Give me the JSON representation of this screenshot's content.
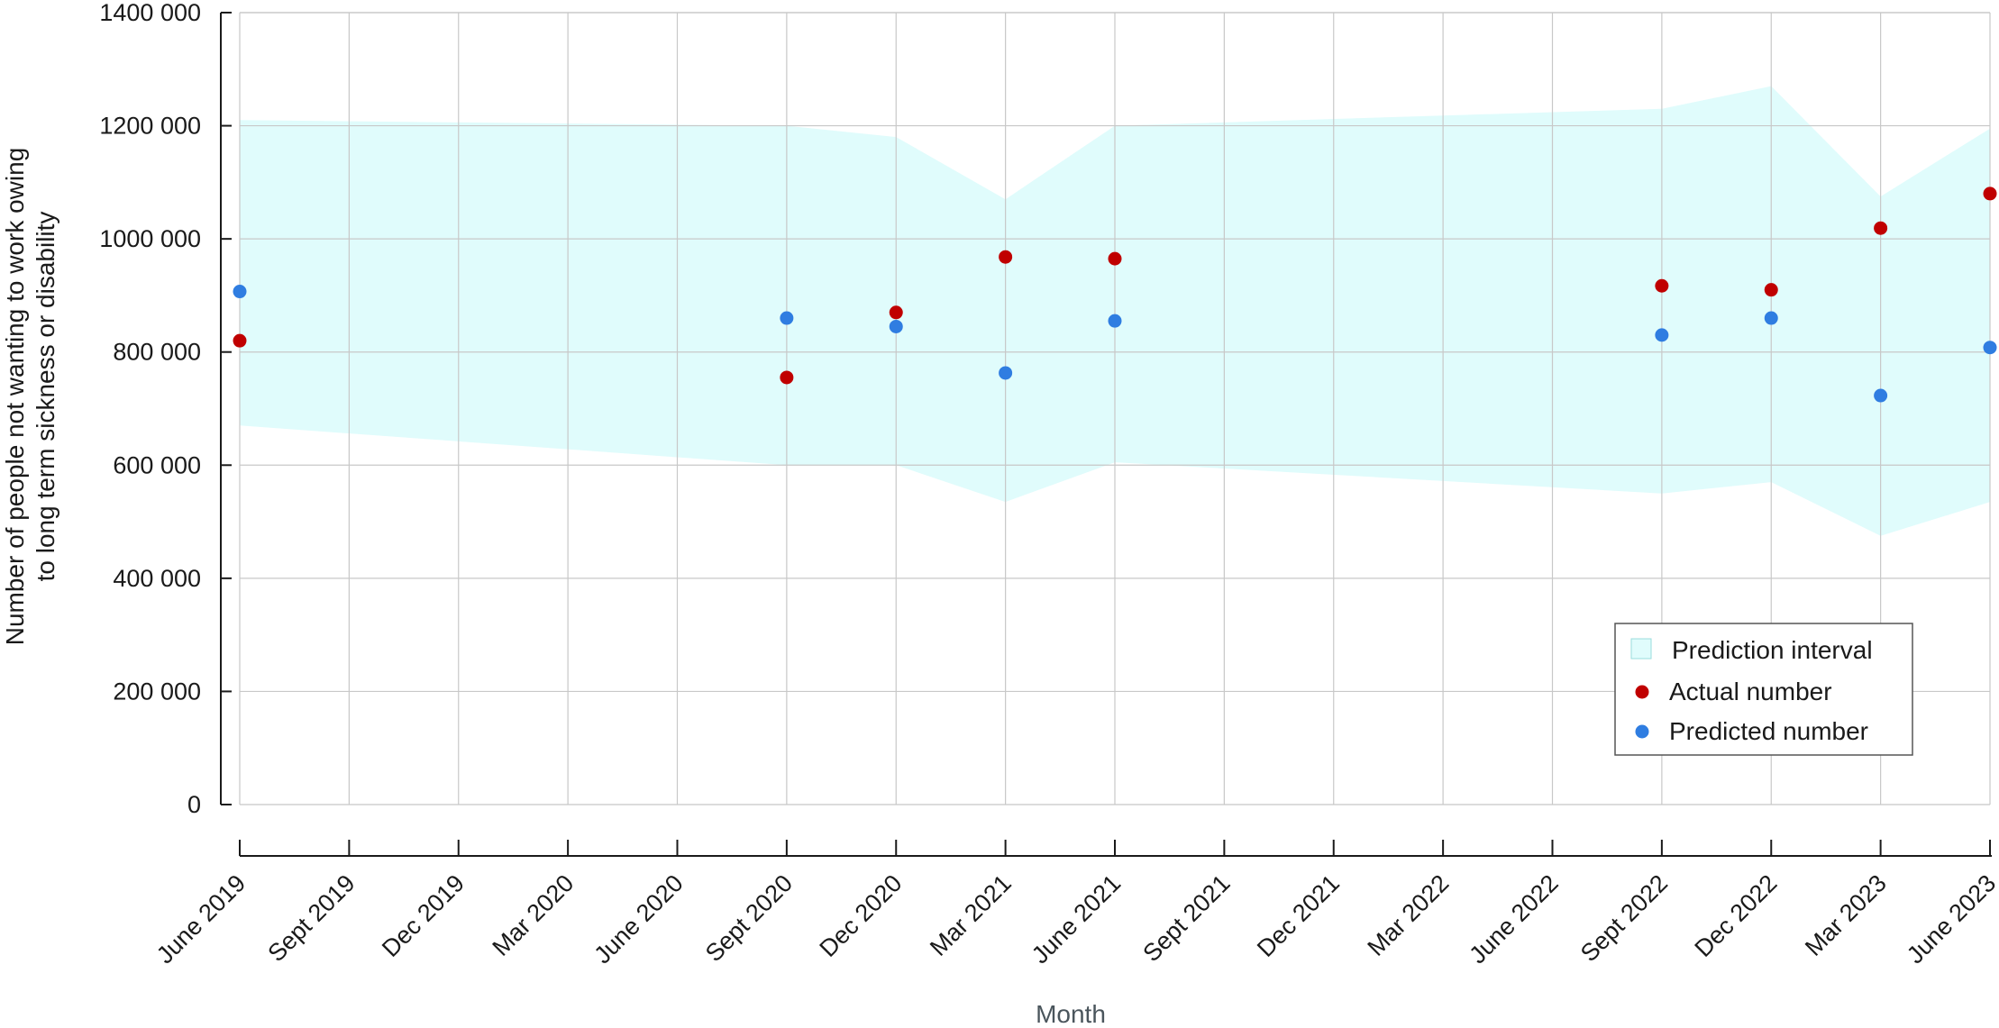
{
  "chart_data": {
    "type": "scatter",
    "xlabel": "Month",
    "ylabel": [
      "Number of people not wanting to work owing",
      "to long term sickness or disability"
    ],
    "ylim": [
      0,
      1400000
    ],
    "y_ticks": [
      0,
      200000,
      400000,
      600000,
      800000,
      1000000,
      1200000,
      1400000
    ],
    "y_tick_labels": [
      "0",
      "200 000",
      "400 000",
      "600 000",
      "800 000",
      "1000 000",
      "1200 000",
      "1400 000"
    ],
    "categories": [
      "June 2019",
      "Sept 2019",
      "Dec 2019",
      "Mar 2020",
      "June 2020",
      "Sept 2020",
      "Dec 2020",
      "Mar 2021",
      "June 2021",
      "Sept 2021",
      "Dec 2021",
      "Mar 2022",
      "June 2022",
      "Sept 2022",
      "Dec 2022",
      "Mar 2023",
      "June 2023"
    ],
    "grid": true,
    "legend_position": "bottom-right",
    "prediction_interval": {
      "name": "Prediction interval",
      "color": "#e0fcfc",
      "upper": [
        1210000,
        null,
        null,
        null,
        null,
        1200000,
        1180000,
        1070000,
        1200000,
        null,
        null,
        null,
        null,
        1230000,
        1270000,
        1075000,
        1195000
      ],
      "lower": [
        670000,
        null,
        null,
        null,
        null,
        600000,
        600000,
        535000,
        605000,
        null,
        null,
        null,
        null,
        550000,
        570000,
        475000,
        535000
      ]
    },
    "series": [
      {
        "name": "Actual number",
        "color": "#c00000",
        "values": [
          820000,
          null,
          null,
          null,
          null,
          755000,
          870000,
          968000,
          965000,
          null,
          null,
          null,
          null,
          917000,
          910000,
          1019000,
          1080000
        ]
      },
      {
        "name": "Predicted number",
        "color": "#2f7de1",
        "values": [
          907000,
          null,
          null,
          null,
          null,
          860000,
          845000,
          763000,
          855000,
          null,
          null,
          null,
          null,
          830000,
          860000,
          723000,
          808000
        ]
      }
    ]
  }
}
